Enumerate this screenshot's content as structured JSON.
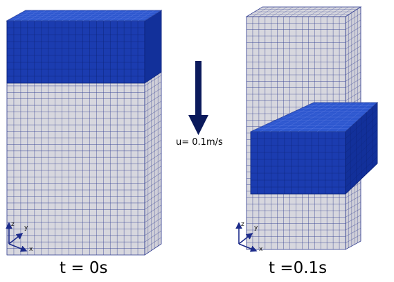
{
  "panels": [
    {
      "caption": "t = 0s",
      "axes": {
        "z": "z",
        "y": "y",
        "x": "x"
      }
    },
    {
      "caption": "t =0.1s",
      "axes": {
        "z": "z",
        "y": "y",
        "x": "x"
      }
    }
  ],
  "arrow": {
    "label": "u= 0.1m/s",
    "color": "#0b1a5c"
  },
  "colors": {
    "mesh_fill": "#d7d7de",
    "mesh_line": "#3c4896",
    "block_front": "#1b3cb0",
    "block_top": "#2d57cf",
    "block_side": "#12309a",
    "axis": "#1c2b8a"
  }
}
